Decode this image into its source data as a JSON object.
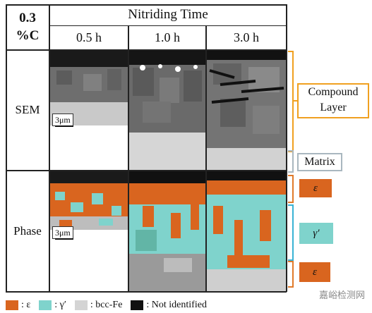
{
  "table": {
    "corner_line1": "0.3",
    "corner_line2": "%C",
    "time_header": "Nitriding Time",
    "columns": [
      "0.5 h",
      "1.0 h",
      "3.0 h"
    ],
    "rows": [
      "SEM",
      "Phase"
    ]
  },
  "scale_label": "3μm",
  "annotations": {
    "compound_line1": "Compound",
    "compound_line2": "Layer",
    "matrix": "Matrix",
    "eps_top": "ε",
    "gamma": "γ′",
    "eps_bottom": "ε"
  },
  "legend": [
    {
      "label": ": ε",
      "color": "#d9651f"
    },
    {
      "label": ": γ′",
      "color": "#7fd3cc"
    },
    {
      "label": ": bcc-Fe",
      "color": "#d4d4d4"
    },
    {
      "label": ": Not identified",
      "color": "#111111"
    }
  ],
  "watermark": "嘉峪检测网",
  "colors": {
    "epsilon": "#d9651f",
    "gamma_prime": "#7fd3cc",
    "bcc_fe": "#d4d4d4",
    "not_identified": "#111111",
    "compound_bracket": "#f0a020",
    "matrix_bracket": "#a9b7bf",
    "gamma_bracket": "#39b3d4"
  }
}
